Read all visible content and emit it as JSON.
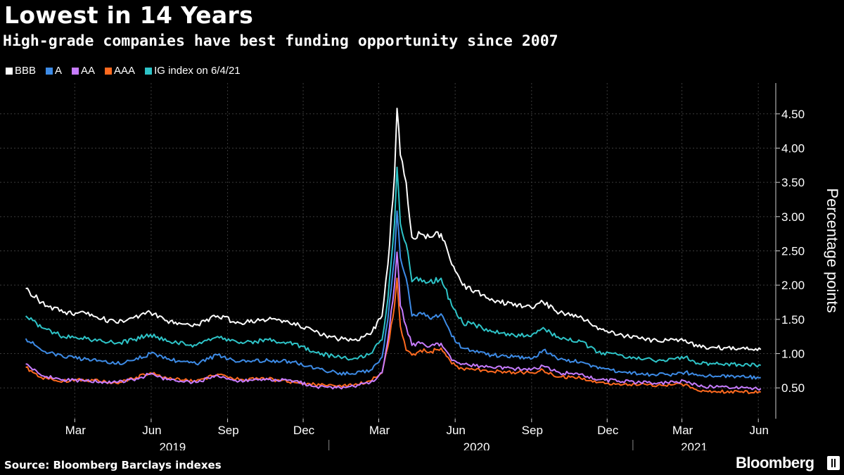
{
  "chart_data": {
    "type": "line",
    "title": "Lowest in 14 Years",
    "subtitle": "High-grade companies have best funding opportunity since 2007",
    "ylabel": "Percentage points",
    "ylim": [
      0.05,
      4.95
    ],
    "y_ticks": [
      "0.50",
      "1.00",
      "1.50",
      "2.00",
      "2.50",
      "3.00",
      "3.50",
      "4.00",
      "4.50"
    ],
    "x_tick_labels": [
      "Mar",
      "Jun",
      "Sep",
      "Dec",
      "Mar",
      "Jun",
      "Sep",
      "Dec",
      "Mar",
      "Jun"
    ],
    "year_labels": [
      "2019",
      "2020",
      "2021"
    ],
    "grid": true,
    "legend_position": "top-left",
    "series": [
      {
        "name": "BBB",
        "color": "#ffffff",
        "x": [
          "2019-01-01",
          "2019-01-20",
          "2019-02-15",
          "2019-03-15",
          "2019-04-20",
          "2019-05-10",
          "2019-05-31",
          "2019-06-20",
          "2019-07-25",
          "2019-08-20",
          "2019-09-15",
          "2019-10-20",
          "2019-11-20",
          "2019-12-15",
          "2020-01-10",
          "2020-01-31",
          "2020-02-20",
          "2020-03-05",
          "2020-03-12",
          "2020-03-20",
          "2020-03-23",
          "2020-03-27",
          "2020-04-03",
          "2020-04-10",
          "2020-04-20",
          "2020-05-01",
          "2020-05-15",
          "2020-05-28",
          "2020-06-10",
          "2020-06-25",
          "2020-07-15",
          "2020-08-10",
          "2020-08-31",
          "2020-09-15",
          "2020-10-05",
          "2020-10-30",
          "2020-11-20",
          "2020-12-15",
          "2021-01-10",
          "2021-01-31",
          "2021-02-20",
          "2021-03-05",
          "2021-03-20",
          "2021-04-10",
          "2021-05-10",
          "2021-06-04"
        ],
        "values": [
          1.95,
          1.75,
          1.6,
          1.58,
          1.45,
          1.52,
          1.6,
          1.48,
          1.42,
          1.55,
          1.45,
          1.5,
          1.45,
          1.32,
          1.22,
          1.2,
          1.28,
          1.55,
          2.3,
          3.6,
          4.58,
          3.9,
          3.5,
          2.7,
          2.75,
          2.7,
          2.75,
          2.3,
          2.0,
          1.92,
          1.8,
          1.7,
          1.68,
          1.75,
          1.6,
          1.55,
          1.35,
          1.28,
          1.22,
          1.18,
          1.2,
          1.2,
          1.1,
          1.09,
          1.07,
          1.06
        ]
      },
      {
        "name": "IG index on 6/4/21",
        "color": "#2ec4c8",
        "x": [
          "2019-01-01",
          "2019-01-20",
          "2019-02-15",
          "2019-03-15",
          "2019-04-20",
          "2019-05-10",
          "2019-05-31",
          "2019-06-20",
          "2019-07-25",
          "2019-08-20",
          "2019-09-15",
          "2019-10-20",
          "2019-11-20",
          "2019-12-15",
          "2020-01-10",
          "2020-01-31",
          "2020-02-20",
          "2020-03-05",
          "2020-03-12",
          "2020-03-20",
          "2020-03-23",
          "2020-03-27",
          "2020-04-03",
          "2020-04-10",
          "2020-04-20",
          "2020-05-01",
          "2020-05-15",
          "2020-05-28",
          "2020-06-10",
          "2020-06-25",
          "2020-07-15",
          "2020-08-10",
          "2020-08-31",
          "2020-09-15",
          "2020-10-05",
          "2020-10-30",
          "2020-11-20",
          "2020-12-15",
          "2021-01-10",
          "2021-01-31",
          "2021-02-20",
          "2021-03-05",
          "2021-03-20",
          "2021-04-10",
          "2021-05-10",
          "2021-06-04"
        ],
        "values": [
          1.55,
          1.38,
          1.25,
          1.22,
          1.15,
          1.2,
          1.28,
          1.18,
          1.12,
          1.25,
          1.15,
          1.2,
          1.15,
          1.02,
          0.95,
          0.93,
          1.0,
          1.2,
          1.8,
          2.9,
          3.72,
          2.9,
          2.6,
          2.05,
          2.1,
          2.05,
          2.1,
          1.7,
          1.45,
          1.42,
          1.32,
          1.28,
          1.25,
          1.38,
          1.22,
          1.18,
          1.02,
          0.98,
          0.92,
          0.9,
          0.92,
          0.95,
          0.86,
          0.85,
          0.84,
          0.83
        ]
      },
      {
        "name": "A",
        "color": "#3d8be6",
        "x": [
          "2019-01-01",
          "2019-01-20",
          "2019-02-15",
          "2019-03-15",
          "2019-04-20",
          "2019-05-10",
          "2019-05-31",
          "2019-06-20",
          "2019-07-25",
          "2019-08-20",
          "2019-09-15",
          "2019-10-20",
          "2019-11-20",
          "2019-12-15",
          "2020-01-10",
          "2020-01-31",
          "2020-02-20",
          "2020-03-05",
          "2020-03-12",
          "2020-03-20",
          "2020-03-23",
          "2020-03-27",
          "2020-04-03",
          "2020-04-10",
          "2020-04-20",
          "2020-05-01",
          "2020-05-15",
          "2020-05-28",
          "2020-06-10",
          "2020-06-25",
          "2020-07-15",
          "2020-08-10",
          "2020-08-31",
          "2020-09-15",
          "2020-10-05",
          "2020-10-30",
          "2020-11-20",
          "2020-12-15",
          "2021-01-10",
          "2021-01-31",
          "2021-02-20",
          "2021-03-05",
          "2021-03-20",
          "2021-04-10",
          "2021-05-10",
          "2021-06-04"
        ],
        "values": [
          1.22,
          1.05,
          0.95,
          0.92,
          0.85,
          0.9,
          1.0,
          0.92,
          0.85,
          0.98,
          0.88,
          0.9,
          0.88,
          0.78,
          0.72,
          0.7,
          0.76,
          0.95,
          1.5,
          2.4,
          3.08,
          2.4,
          2.1,
          1.55,
          1.6,
          1.52,
          1.58,
          1.25,
          1.08,
          1.02,
          0.98,
          0.95,
          0.92,
          1.05,
          0.92,
          0.88,
          0.78,
          0.74,
          0.7,
          0.69,
          0.7,
          0.73,
          0.68,
          0.67,
          0.66,
          0.65
        ]
      },
      {
        "name": "AA",
        "color": "#c77cff",
        "x": [
          "2019-01-01",
          "2019-01-20",
          "2019-02-15",
          "2019-03-15",
          "2019-04-20",
          "2019-05-10",
          "2019-05-31",
          "2019-06-20",
          "2019-07-25",
          "2019-08-20",
          "2019-09-15",
          "2019-10-20",
          "2019-11-20",
          "2019-12-15",
          "2020-01-10",
          "2020-01-31",
          "2020-02-20",
          "2020-03-05",
          "2020-03-12",
          "2020-03-20",
          "2020-03-23",
          "2020-03-27",
          "2020-04-03",
          "2020-04-10",
          "2020-04-20",
          "2020-05-01",
          "2020-05-15",
          "2020-05-28",
          "2020-06-10",
          "2020-06-25",
          "2020-07-15",
          "2020-08-10",
          "2020-08-31",
          "2020-09-15",
          "2020-10-05",
          "2020-10-30",
          "2020-11-20",
          "2020-12-15",
          "2021-01-10",
          "2021-01-31",
          "2021-02-20",
          "2021-03-05",
          "2021-03-20",
          "2021-04-10",
          "2021-05-10",
          "2021-06-04"
        ],
        "values": [
          0.85,
          0.68,
          0.62,
          0.6,
          0.58,
          0.62,
          0.7,
          0.62,
          0.58,
          0.68,
          0.6,
          0.62,
          0.6,
          0.52,
          0.5,
          0.52,
          0.58,
          0.72,
          1.2,
          2.0,
          2.48,
          1.7,
          1.4,
          1.12,
          1.15,
          1.1,
          1.15,
          0.9,
          0.85,
          0.82,
          0.8,
          0.78,
          0.76,
          0.82,
          0.72,
          0.7,
          0.62,
          0.6,
          0.58,
          0.57,
          0.58,
          0.6,
          0.53,
          0.51,
          0.5,
          0.49
        ]
      },
      {
        "name": "AAA",
        "color": "#ff6a1f",
        "x": [
          "2019-01-01",
          "2019-01-20",
          "2019-02-15",
          "2019-03-15",
          "2019-04-20",
          "2019-05-10",
          "2019-05-31",
          "2019-06-20",
          "2019-07-25",
          "2019-08-20",
          "2019-09-15",
          "2019-10-20",
          "2019-11-20",
          "2019-12-15",
          "2020-01-10",
          "2020-01-31",
          "2020-02-20",
          "2020-03-05",
          "2020-03-12",
          "2020-03-20",
          "2020-03-23",
          "2020-03-27",
          "2020-04-03",
          "2020-04-10",
          "2020-04-20",
          "2020-05-01",
          "2020-05-15",
          "2020-05-28",
          "2020-06-10",
          "2020-06-25",
          "2020-07-15",
          "2020-08-10",
          "2020-08-31",
          "2020-09-15",
          "2020-10-05",
          "2020-10-30",
          "2020-11-20",
          "2020-12-15",
          "2021-01-10",
          "2021-01-31",
          "2021-02-20",
          "2021-03-05",
          "2021-03-20",
          "2021-04-10",
          "2021-05-10",
          "2021-06-04"
        ],
        "values": [
          0.8,
          0.65,
          0.6,
          0.62,
          0.57,
          0.63,
          0.72,
          0.64,
          0.6,
          0.7,
          0.62,
          0.63,
          0.58,
          0.55,
          0.52,
          0.54,
          0.6,
          0.72,
          1.1,
          1.7,
          2.1,
          1.4,
          1.05,
          0.98,
          1.05,
          1.02,
          1.08,
          0.85,
          0.78,
          0.76,
          0.74,
          0.73,
          0.72,
          0.76,
          0.66,
          0.64,
          0.58,
          0.56,
          0.55,
          0.54,
          0.55,
          0.55,
          0.46,
          0.45,
          0.44,
          0.44
        ]
      }
    ]
  },
  "footer": {
    "source": "Source: Bloomberg Barclays indexes",
    "brand": "Bloomberg"
  }
}
